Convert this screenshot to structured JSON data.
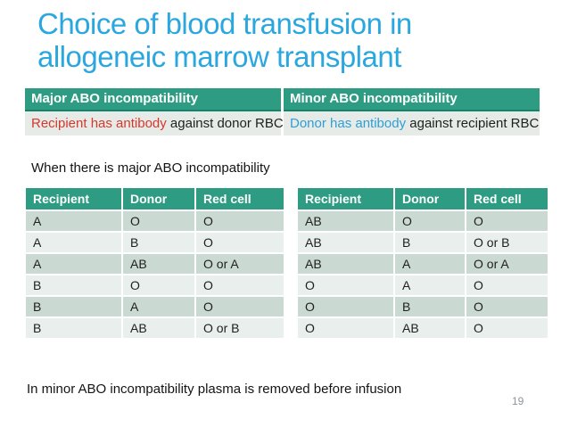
{
  "slide": {
    "title_line1": "Choice of blood transfusion in",
    "title_line2": "allogeneic marrow transplant",
    "note_major": "When there is major ABO incompatibility",
    "note_minor": "In minor ABO incompatibility plasma is removed before infusion",
    "page_number": "19"
  },
  "incompatibility_table": {
    "headers": [
      "Major ABO incompatibility",
      "Minor ABO incompatibility"
    ],
    "major_cell": {
      "highlight": "Recipient has antibody",
      "rest": " against donor RBC"
    },
    "minor_cell": {
      "highlight": "Donor has antibody",
      "rest": " against recipient RBC"
    }
  },
  "major_table": {
    "headers": [
      "Recipient",
      "Donor",
      "Red cell"
    ],
    "rows": [
      [
        "A",
        "O",
        "O"
      ],
      [
        "A",
        "B",
        "O"
      ],
      [
        "A",
        "AB",
        "O or A"
      ],
      [
        "B",
        "O",
        "O"
      ],
      [
        "B",
        "A",
        "O"
      ],
      [
        "B",
        "AB",
        "O or B"
      ]
    ]
  },
  "minor_table": {
    "headers": [
      "Recipient",
      "Donor",
      "Red cell"
    ],
    "rows": [
      [
        "AB",
        "O",
        "O"
      ],
      [
        "AB",
        "B",
        "O or B"
      ],
      [
        "AB",
        "A",
        "O or A"
      ],
      [
        "O",
        "A",
        "O"
      ],
      [
        "O",
        "B",
        "O"
      ],
      [
        "O",
        "AB",
        "O"
      ]
    ]
  },
  "colors": {
    "title_blue": "#2AA7DF",
    "header_teal": "#2E9C82",
    "header_border_teal": "#15826C",
    "row_dark": "#CBD9D3",
    "row_light": "#E9EFEC",
    "top_row_bg": "#E6EBE8",
    "red_text": "#D8372B",
    "blue_text": "#2D9FD6",
    "page_gray": "#8E9499"
  }
}
